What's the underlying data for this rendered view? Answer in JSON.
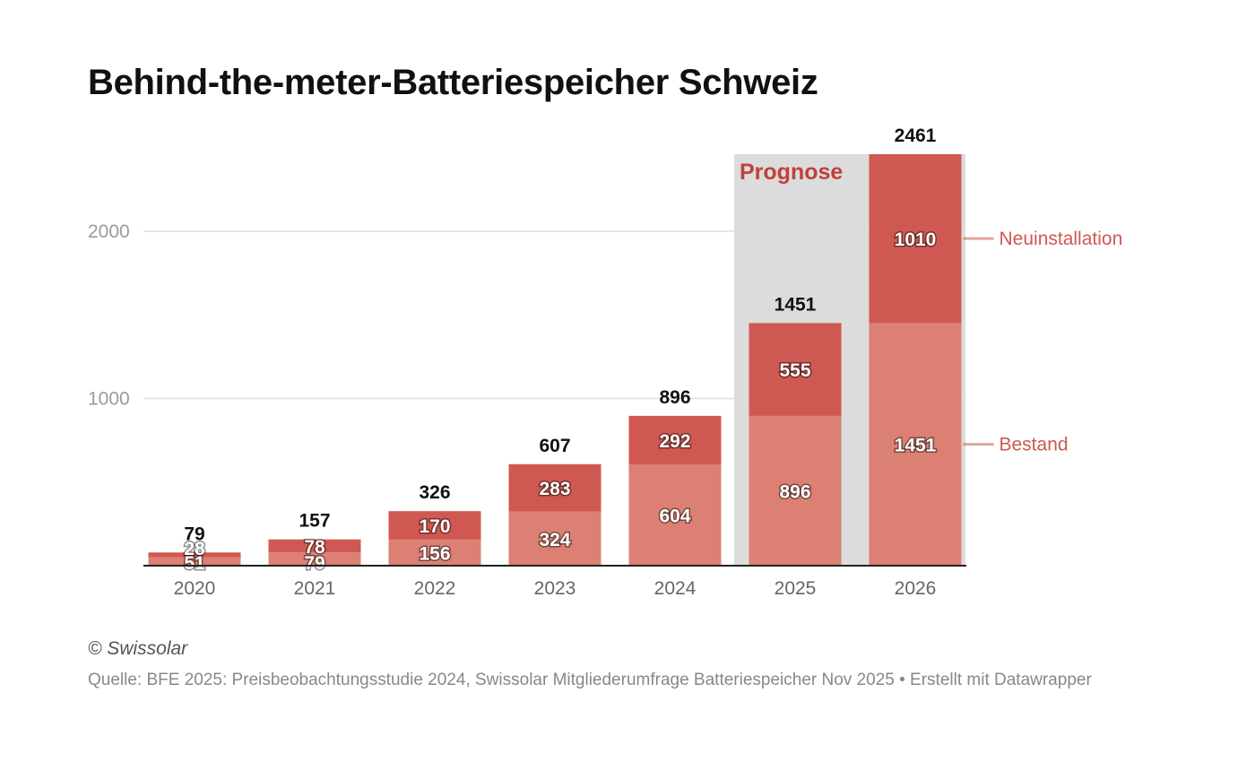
{
  "title": "Behind-the-meter-Batteriespeicher Schweiz",
  "credit": "© Swissolar",
  "source": "Quelle: BFE 2025: Preisbeobachtungsstudie 2024, Swissolar Mitgliederumfrage Batteriespeicher Nov 2025 • Erstellt mit Datawrapper",
  "colors": {
    "bestand": "#dc8074",
    "neuinstallation": "#d05852",
    "forecast_bg": "#dcdcdc",
    "forecast_label": "#c0403c",
    "legend_neuinstallation": "#d05852",
    "legend_bestand": "#c85a50",
    "grid": "#e0e0e0",
    "axis": "#222222"
  },
  "chart_data": {
    "type": "bar",
    "stacked": true,
    "categories": [
      "2020",
      "2021",
      "2022",
      "2023",
      "2024",
      "2025",
      "2026"
    ],
    "series": [
      {
        "name": "Bestand",
        "values": [
          51,
          79,
          156,
          324,
          604,
          896,
          1451
        ]
      },
      {
        "name": "Neuinstallation",
        "values": [
          28,
          78,
          170,
          283,
          292,
          555,
          1010
        ]
      }
    ],
    "totals": [
      79,
      157,
      326,
      607,
      896,
      1451,
      2461
    ],
    "yticks": [
      1000,
      2000
    ],
    "ylim": [
      0,
      2461
    ],
    "grid": true,
    "legend": "right, inline labels",
    "forecast": {
      "label": "Prognose",
      "categories": [
        "2025",
        "2026"
      ]
    }
  }
}
